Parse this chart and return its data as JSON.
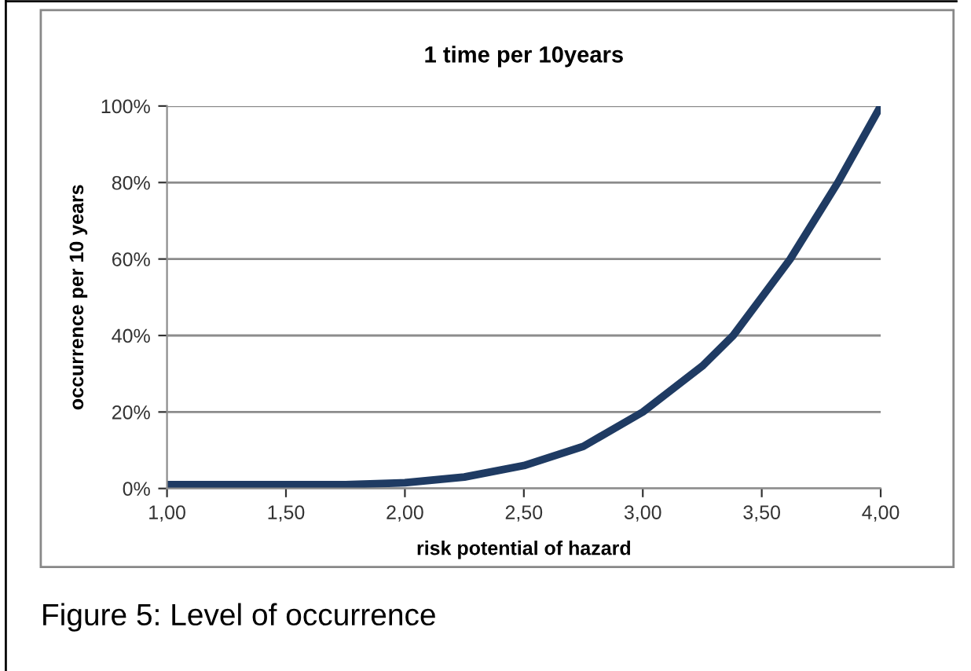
{
  "chart_data": {
    "type": "line",
    "title": "1 time per 10years",
    "xlabel": "risk potential of hazard",
    "ylabel": "occurrence per 10 years",
    "annotations": [
      "Figure 5: Level of occurrence"
    ],
    "x": [
      1.0,
      1.25,
      1.5,
      1.75,
      2.0,
      2.25,
      2.5,
      2.75,
      3.0,
      3.25,
      3.38,
      3.5,
      3.62,
      3.75,
      3.82,
      4.0
    ],
    "series": [
      {
        "color": "#1f3b63",
        "values": [
          1,
          1,
          1,
          1,
          1.5,
          3,
          6,
          11,
          20,
          32,
          40,
          50,
          60,
          73,
          80,
          100
        ]
      }
    ],
    "xlim": [
      1,
      4
    ],
    "ylim": [
      0,
      100
    ],
    "xticks": [
      {
        "value": 1,
        "label": "1,00"
      },
      {
        "value": 1.5,
        "label": "1,50"
      },
      {
        "value": 2,
        "label": "2,00"
      },
      {
        "value": 2.5,
        "label": "2,50"
      },
      {
        "value": 3,
        "label": "3,00"
      },
      {
        "value": 3.5,
        "label": "3,50"
      },
      {
        "value": 4,
        "label": "4,00"
      }
    ],
    "yticks": [
      {
        "value": 0,
        "label": "0%"
      },
      {
        "value": 20,
        "label": "20%"
      },
      {
        "value": 40,
        "label": "40%"
      },
      {
        "value": 60,
        "label": "60%"
      },
      {
        "value": 80,
        "label": "80%"
      },
      {
        "value": 100,
        "label": "100%"
      }
    ],
    "grid": "y",
    "marker": "none",
    "line_style": "solid"
  }
}
